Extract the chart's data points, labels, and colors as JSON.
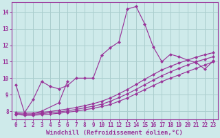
{
  "bg_color": "#ceeaea",
  "grid_color": "#aacece",
  "line_color": "#993399",
  "xlabel": "Windchill (Refroidissement éolien,°C)",
  "xlim": [
    -0.5,
    23.5
  ],
  "ylim": [
    7.5,
    14.6
  ],
  "xticks": [
    0,
    1,
    2,
    3,
    4,
    5,
    6,
    7,
    8,
    9,
    10,
    11,
    12,
    13,
    14,
    15,
    16,
    17,
    18,
    19,
    20,
    21,
    22,
    23
  ],
  "yticks": [
    8,
    9,
    10,
    11,
    12,
    13,
    14
  ],
  "series": [
    {
      "x": [
        0,
        1,
        2,
        3,
        4,
        5,
        6,
        7,
        8,
        9,
        10,
        11,
        12,
        13,
        14,
        15,
        16,
        17,
        18,
        19,
        20,
        21,
        22,
        23
      ],
      "y": [
        9.6,
        7.9,
        8.7,
        9.8,
        9.5,
        9.35,
        9.55,
        10.0,
        10.0,
        10.0,
        11.4,
        11.85,
        12.2,
        14.2,
        14.35,
        13.3,
        11.9,
        11.0,
        11.45,
        11.3,
        11.1,
        10.95,
        10.55,
        11.05
      ]
    },
    {
      "x": [
        0,
        1,
        2,
        3,
        4,
        5,
        6,
        7,
        8,
        9,
        10,
        11,
        12,
        13,
        14,
        15,
        16,
        17,
        18,
        19,
        20,
        21,
        22,
        23
      ],
      "y": [
        7.8,
        7.75,
        7.75,
        7.78,
        7.82,
        7.87,
        7.93,
        8.0,
        8.08,
        8.17,
        8.28,
        8.4,
        8.6,
        8.8,
        9.05,
        9.3,
        9.55,
        9.8,
        10.0,
        10.2,
        10.4,
        10.6,
        10.8,
        11.0
      ]
    },
    {
      "x": [
        0,
        1,
        2,
        3,
        4,
        5,
        6,
        7,
        8,
        9,
        10,
        11,
        12,
        13,
        14,
        15,
        16,
        17,
        18,
        19,
        20,
        21,
        22,
        23
      ],
      "y": [
        7.85,
        7.82,
        7.82,
        7.85,
        7.9,
        7.95,
        8.02,
        8.1,
        8.2,
        8.3,
        8.42,
        8.6,
        8.82,
        9.05,
        9.32,
        9.6,
        9.88,
        10.15,
        10.38,
        10.6,
        10.8,
        11.0,
        11.15,
        11.3
      ]
    },
    {
      "x": [
        0,
        1,
        2,
        3,
        4,
        5,
        6,
        7,
        8,
        9,
        10,
        11,
        12,
        13,
        14,
        15,
        16,
        17,
        18,
        19,
        20,
        21,
        22,
        23
      ],
      "y": [
        7.9,
        7.88,
        7.88,
        7.92,
        7.98,
        8.05,
        8.13,
        8.22,
        8.33,
        8.45,
        8.6,
        8.8,
        9.05,
        9.32,
        9.62,
        9.93,
        10.22,
        10.5,
        10.72,
        10.92,
        11.1,
        11.28,
        11.42,
        11.55
      ]
    },
    {
      "x": [
        2,
        3,
        5,
        6
      ],
      "y": [
        7.85,
        8.0,
        8.5,
        9.8
      ]
    }
  ]
}
